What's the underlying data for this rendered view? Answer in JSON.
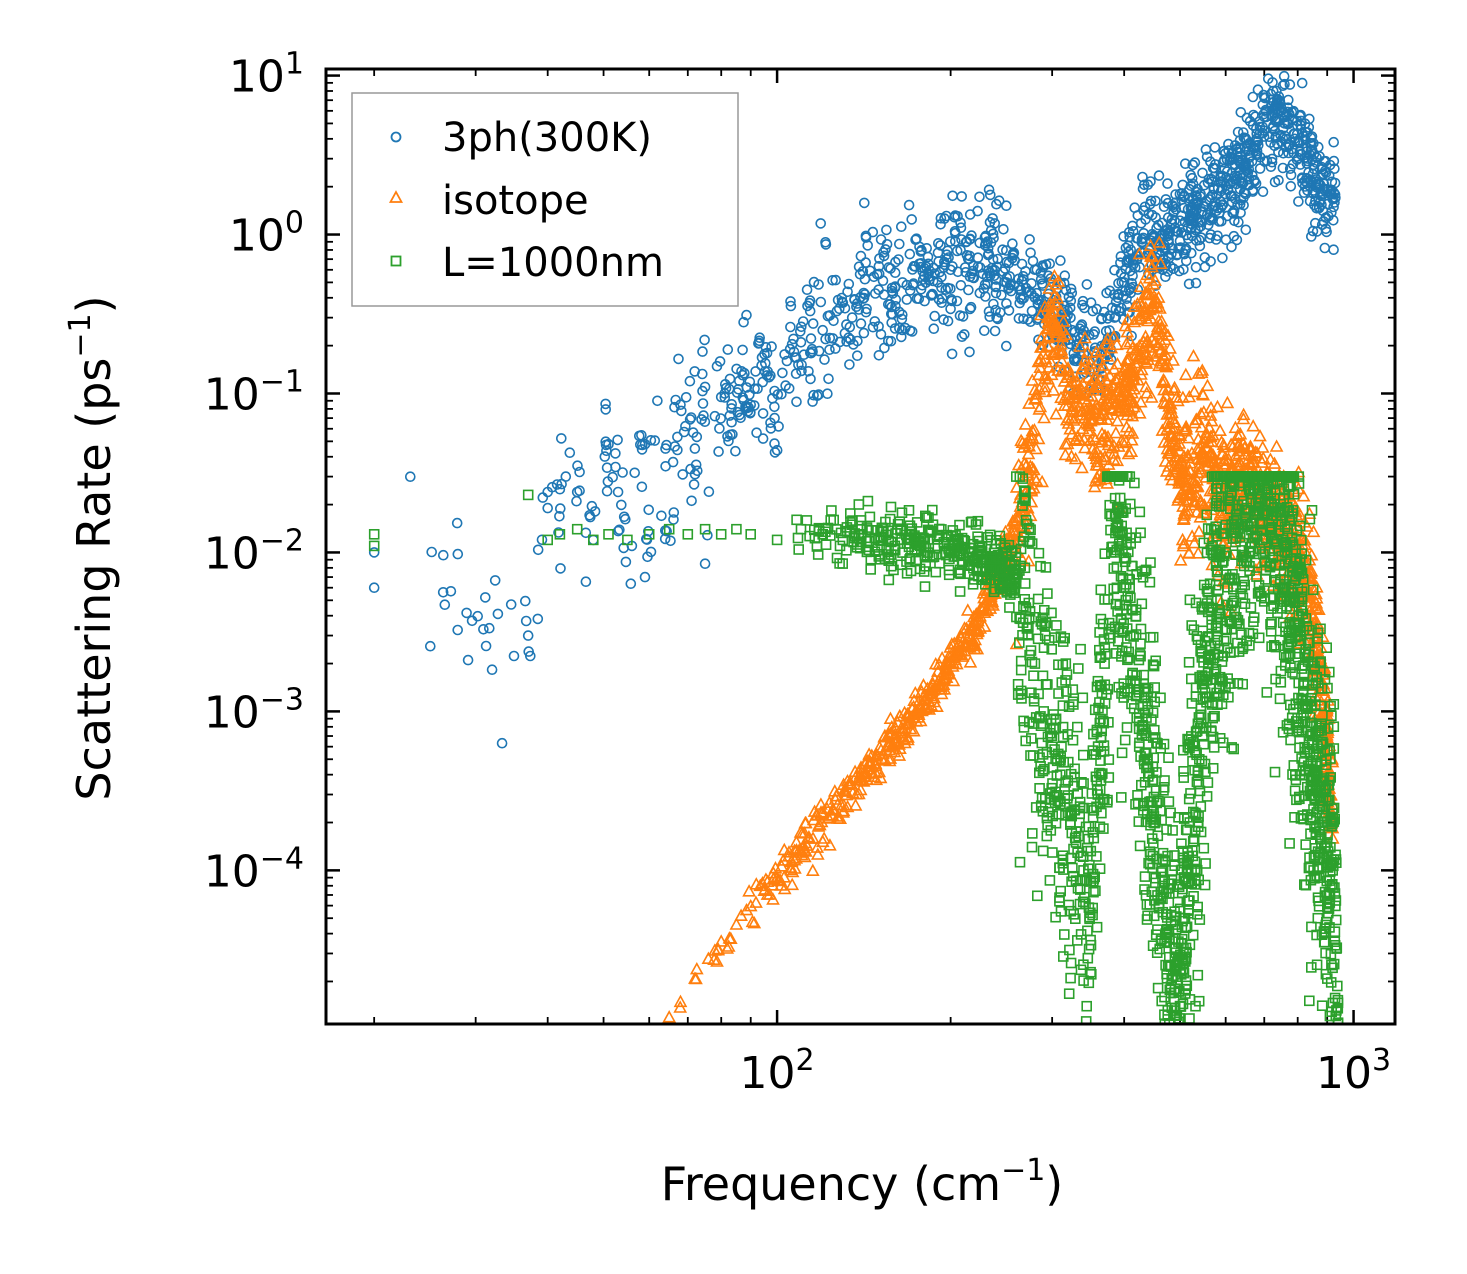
{
  "chart_data": {
    "type": "scatter",
    "title": "",
    "xlabel": "Frequency (cm",
    "xlabel_sup": "−1",
    "xlabel_tail": ")",
    "ylabel": "Scattering Rate (ps",
    "ylabel_sup": "−1",
    "ylabel_tail": ")",
    "xscale": "log",
    "yscale": "log",
    "xlim": [
      16.5,
      1180
    ],
    "ylim": [
      1.08e-05,
      11
    ],
    "x_ticks": [
      {
        "value": 100,
        "base": "10",
        "exp": "2"
      },
      {
        "value": 1000,
        "base": "10",
        "exp": "3"
      }
    ],
    "y_ticks": [
      {
        "value": 10,
        "base": "10",
        "exp": "1"
      },
      {
        "value": 1,
        "base": "10",
        "exp": "0"
      },
      {
        "value": 0.1,
        "base": "10",
        "exp": "−1"
      },
      {
        "value": 0.01,
        "base": "10",
        "exp": "−2"
      },
      {
        "value": 0.001,
        "base": "10",
        "exp": "−3"
      },
      {
        "value": 0.0001,
        "base": "10",
        "exp": "−4"
      }
    ],
    "legend_position": "top-left",
    "series": [
      {
        "name": "3ph(300K)",
        "marker": "circle",
        "color": "#1f77b4",
        "x": [
          20,
          20,
          37,
          40,
          40,
          42,
          43,
          45,
          48,
          51,
          53,
          56,
          59,
          59,
          62,
          63,
          66,
          68,
          72,
          75,
          75,
          78,
          80,
          83,
          86,
          90,
          94,
          96,
          99,
          104,
          110,
          115,
          120,
          127,
          135,
          142,
          150,
          158,
          165,
          172,
          180,
          190,
          200,
          212,
          225,
          238,
          250,
          265,
          280,
          295,
          310,
          325,
          340,
          355,
          370,
          385,
          400,
          415,
          430,
          450,
          470,
          490,
          510,
          530,
          550,
          575,
          600,
          625,
          650,
          675,
          700,
          725,
          750,
          770,
          790,
          810,
          830,
          850,
          870,
          890,
          910,
          930
        ],
        "values": [
          0.006,
          0.01,
          0.003,
          0.024,
          0.019,
          0.025,
          0.03,
          0.024,
          0.012,
          0.048,
          0.024,
          0.011,
          0.048,
          0.007,
          0.09,
          0.017,
          0.037,
          0.085,
          0.045,
          0.11,
          0.0085,
          0.072,
          0.095,
          0.055,
          0.12,
          0.085,
          0.15,
          0.13,
          0.07,
          0.16,
          0.21,
          0.19,
          0.25,
          0.33,
          0.3,
          0.42,
          0.45,
          0.35,
          0.5,
          0.48,
          0.55,
          0.5,
          0.6,
          0.62,
          0.62,
          0.55,
          0.5,
          0.45,
          0.4,
          0.35,
          0.3,
          0.25,
          0.2,
          0.18,
          0.2,
          0.3,
          0.5,
          0.7,
          0.9,
          0.95,
          1.0,
          1.1,
          1.2,
          1.4,
          1.5,
          1.6,
          1.8,
          2.2,
          2.8,
          3.5,
          4.5,
          5.5,
          6.0,
          5.0,
          4.0,
          3.2,
          2.8,
          2.4,
          2.1,
          1.9,
          1.8,
          1.7
        ]
      },
      {
        "name": "isotope",
        "marker": "triangle",
        "color": "#ff7f0e",
        "x": [
          65,
          68,
          72,
          76,
          80,
          85,
          90,
          95,
          100,
          106,
          112,
          118,
          125,
          132,
          140,
          148,
          156,
          165,
          175,
          185,
          195,
          205,
          215,
          225,
          235,
          245,
          255,
          265,
          275,
          285,
          295,
          305,
          315,
          325,
          335,
          350,
          365,
          380,
          395,
          410,
          425,
          440,
          455,
          470,
          485,
          500,
          520,
          540,
          560,
          580,
          600,
          620,
          650,
          680,
          710,
          740,
          770,
          800,
          830,
          860,
          890,
          920
        ],
        "values": [
          1.2e-05,
          1.5e-05,
          2.1e-05,
          2.8e-05,
          3.6e-05,
          4.6e-05,
          6e-05,
          7.5e-05,
          9e-05,
          0.000115,
          0.00015,
          0.00019,
          0.00024,
          0.0003,
          0.00037,
          0.00047,
          0.0006,
          0.00078,
          0.001,
          0.0013,
          0.0017,
          0.0023,
          0.003,
          0.004,
          0.0055,
          0.008,
          0.012,
          0.018,
          0.035,
          0.08,
          0.2,
          0.25,
          0.12,
          0.08,
          0.1,
          0.08,
          0.07,
          0.08,
          0.09,
          0.12,
          0.2,
          0.32,
          0.38,
          0.12,
          0.05,
          0.03,
          0.025,
          0.035,
          0.05,
          0.025,
          0.02,
          0.025,
          0.03,
          0.022,
          0.018,
          0.015,
          0.012,
          0.009,
          0.006,
          0.003,
          0.001,
          0.00016
        ]
      },
      {
        "name": "L=1000nm",
        "marker": "square",
        "color": "#2ca02c",
        "x": [
          20,
          20,
          37,
          40,
          42,
          45,
          48,
          51,
          55,
          60,
          65,
          70,
          75,
          80,
          85,
          90,
          100,
          110,
          120,
          130,
          140,
          150,
          160,
          170,
          180,
          190,
          200,
          215,
          230,
          245,
          260,
          270,
          280,
          290,
          300,
          310,
          320,
          330,
          340,
          350,
          360,
          370,
          380,
          390,
          400,
          410,
          420,
          430,
          440,
          450,
          460,
          470,
          480,
          490,
          500,
          510,
          520,
          540,
          560,
          580,
          600,
          620,
          640,
          660,
          680,
          700,
          720,
          740,
          760,
          780,
          800,
          820,
          840,
          860,
          880,
          900,
          920,
          940
        ],
        "values": [
          0.013,
          0.011,
          0.023,
          0.012,
          0.013,
          0.014,
          0.012,
          0.013,
          0.012,
          0.013,
          0.014,
          0.013,
          0.014,
          0.013,
          0.014,
          0.013,
          0.012,
          0.014,
          0.013,
          0.012,
          0.013,
          0.012,
          0.011,
          0.012,
          0.011,
          0.011,
          0.01,
          0.01,
          0.009,
          0.008,
          0.007,
          0.0045,
          0.002,
          0.001,
          0.0006,
          0.0004,
          0.00023,
          0.00015,
          0.0001,
          8.5e-05,
          0.0003,
          0.002,
          0.01,
          0.015,
          0.006,
          0.003,
          0.0015,
          0.0008,
          0.00045,
          0.0002,
          6e-05,
          3.5e-05,
          2.5e-05,
          1.8e-05,
          1.4e-05,
          5e-05,
          0.0002,
          0.0005,
          0.002,
          0.005,
          0.01,
          0.015,
          0.02,
          0.025,
          0.03,
          0.028,
          0.02,
          0.015,
          0.01,
          0.006,
          0.003,
          0.0015,
          0.0007,
          0.0004,
          0.0002,
          0.00015,
          0.0001,
          1.1e-05
        ]
      }
    ]
  }
}
